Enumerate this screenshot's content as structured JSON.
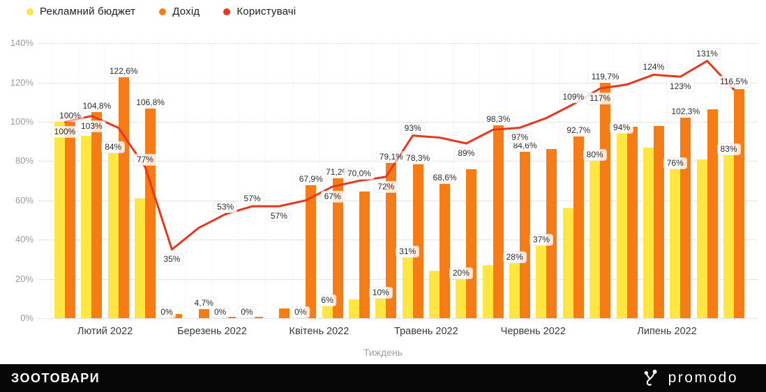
{
  "legend": [
    {
      "label": "Рекламний бюджет",
      "color": "#FFE640"
    },
    {
      "label": "Дохід",
      "color": "#F87C16"
    },
    {
      "label": "Користувачі",
      "color": "#E7381D"
    }
  ],
  "chart_data": {
    "type": "grouped-bar + line combo",
    "x_axis_title": "Тиждень",
    "y_ticks": [
      "0%",
      "20%",
      "40%",
      "60%",
      "80%",
      "100%",
      "120%",
      "140%"
    ],
    "ylim": [
      0,
      140
    ],
    "grid": "horizontal dotted",
    "legend_position": "top-left",
    "months": [
      {
        "label": "Лютий 2022",
        "weeks": 4
      },
      {
        "label": "Березень 2022",
        "weeks": 4
      },
      {
        "label": "Квітень 2022",
        "weeks": 4
      },
      {
        "label": "Травень 2022",
        "weeks": 4
      },
      {
        "label": "Червень 2022",
        "weeks": 4
      },
      {
        "label": "Липень 2022",
        "weeks": 6
      }
    ],
    "series": [
      {
        "name": "Рекламний бюджет",
        "type": "bar",
        "color": "#FFE640",
        "values": [
          100,
          93,
          84,
          61,
          0,
          0,
          0,
          0,
          0,
          0,
          6,
          9.5,
          10,
          31,
          24,
          20,
          27,
          28,
          37,
          56,
          80,
          94,
          87,
          76,
          81,
          83
        ],
        "labels": [
          null,
          null,
          "84%",
          null,
          "0%",
          null,
          "0%",
          "0%",
          null,
          "0%",
          "6%",
          null,
          "10%",
          "31%",
          null,
          "20%",
          null,
          "28%",
          "37%",
          null,
          "80%",
          "94%",
          null,
          "76%",
          null,
          "83%"
        ]
      },
      {
        "name": "Дохід",
        "type": "bar",
        "color": "#F87C16",
        "values": [
          100,
          104.8,
          122.6,
          106.8,
          2.3,
          4.7,
          0.6,
          0.6,
          5,
          67.9,
          71.2,
          64.5,
          79.1,
          78.3,
          68.6,
          76,
          98.3,
          84.6,
          86,
          92.7,
          119.7,
          97.5,
          98,
          102.3,
          106.5,
          116.5
        ],
        "labels": [
          "100%",
          "104,8%",
          "122,6%",
          "106,8%",
          null,
          "4,7%",
          null,
          null,
          null,
          "67,9%",
          "71,2%",
          null,
          "79,1%",
          "78,3%",
          "68,6%",
          null,
          "98,3%",
          "84,6%",
          null,
          "92,7%",
          "119,7%",
          null,
          null,
          "102,3%",
          null,
          null
        ]
      },
      {
        "name": "Користувачі",
        "type": "line",
        "color": "#E7381D",
        "values": [
          100,
          103,
          97,
          77,
          35,
          46,
          53,
          57,
          57,
          60,
          67,
          70,
          72,
          93,
          92,
          89,
          96,
          97,
          102,
          109,
          117,
          119,
          124,
          123,
          131,
          116.5
        ],
        "labels": [
          "100%",
          "103%",
          null,
          "77%",
          "35%",
          null,
          "53%",
          "57%",
          "57%",
          null,
          "67%",
          "70,0%",
          "72%",
          "93%",
          null,
          "89%",
          null,
          "97%",
          null,
          "109%",
          "117%",
          null,
          "124%",
          "123%",
          "131%",
          "116,5%"
        ],
        "label_pos": [
          "below",
          "below",
          null,
          "above",
          "below",
          null,
          "above",
          "above",
          "below",
          null,
          "below",
          "above",
          "below",
          "above",
          null,
          "below",
          null,
          "below",
          null,
          "above",
          "below",
          null,
          "above",
          "below",
          "above",
          "above"
        ]
      }
    ]
  },
  "footer": {
    "brand": "ЗООТОВАРИ",
    "logo_text": "promodo",
    "logo_icon": "promodo-cherry-mark"
  }
}
